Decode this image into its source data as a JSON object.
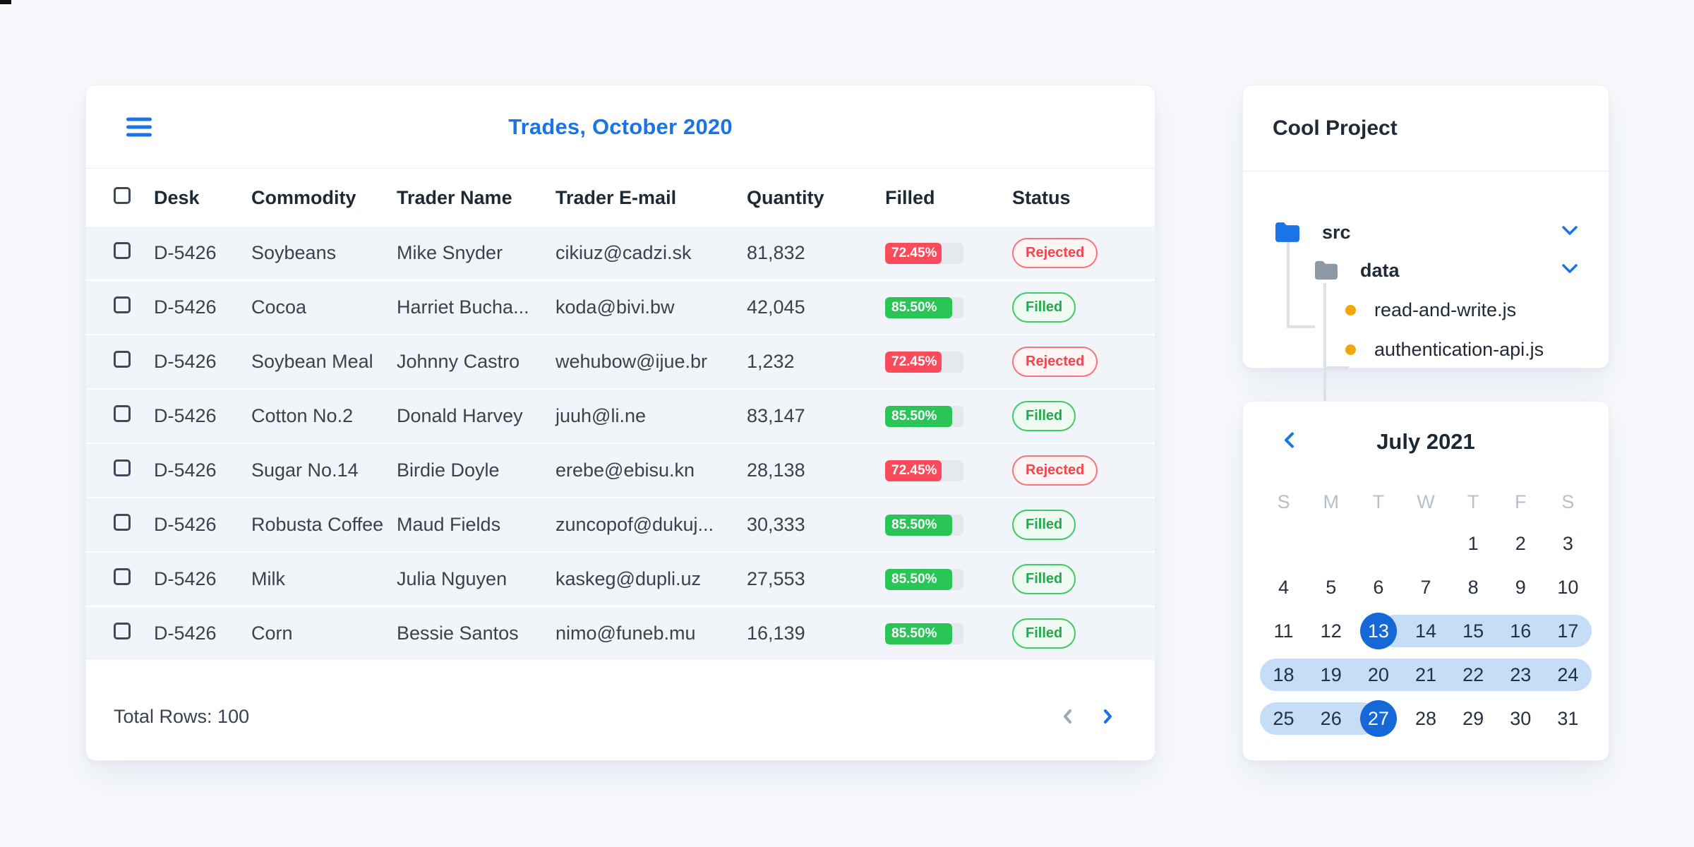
{
  "accent_color": "#1a73e8",
  "table_card": {
    "title": "Trades, October 2020",
    "columns": [
      "Desk",
      "Commodity",
      "Trader Name",
      "Trader E-mail",
      "Quantity",
      "Filled",
      "Status"
    ],
    "rows": [
      {
        "desk": "D-5426",
        "commodity": "Soybeans",
        "trader": "Mike Snyder",
        "email": "cikiuz@cadzi.sk",
        "quantity": "81,832",
        "filled": "72.45%",
        "status": "Rejected"
      },
      {
        "desk": "D-5426",
        "commodity": "Cocoa",
        "trader": "Harriet Bucha...",
        "email": "koda@bivi.bw",
        "quantity": "42,045",
        "filled": "85.50%",
        "status": "Filled"
      },
      {
        "desk": "D-5426",
        "commodity": "Soybean Meal",
        "trader": "Johnny Castro",
        "email": "wehubow@ijue.br",
        "quantity": "1,232",
        "filled": "72.45%",
        "status": "Rejected"
      },
      {
        "desk": "D-5426",
        "commodity": "Cotton No.2",
        "trader": "Donald Harvey",
        "email": "juuh@li.ne",
        "quantity": "83,147",
        "filled": "85.50%",
        "status": "Filled"
      },
      {
        "desk": "D-5426",
        "commodity": "Sugar No.14",
        "trader": "Birdie Doyle",
        "email": "erebe@ebisu.kn",
        "quantity": "28,138",
        "filled": "72.45%",
        "status": "Rejected"
      },
      {
        "desk": "D-5426",
        "commodity": "Robusta Coffee",
        "trader": "Maud Fields",
        "email": "zuncopof@dukuj...",
        "quantity": "30,333",
        "filled": "85.50%",
        "status": "Filled"
      },
      {
        "desk": "D-5426",
        "commodity": "Milk",
        "trader": "Julia Nguyen",
        "email": "kaskeg@dupli.uz",
        "quantity": "27,553",
        "filled": "85.50%",
        "status": "Filled"
      },
      {
        "desk": "D-5426",
        "commodity": "Corn",
        "trader": "Bessie Santos",
        "email": "nimo@funeb.mu",
        "quantity": "16,139",
        "filled": "85.50%",
        "status": "Filled"
      }
    ],
    "status_colors": {
      "filled_green": "#2bc457",
      "rejected_red": "#fb4b5b"
    },
    "footer": {
      "total_label": "Total Rows: 100"
    }
  },
  "project_card": {
    "title": "Cool Project",
    "tree": {
      "src_label": "src",
      "data_label": "data",
      "files": [
        "read-and-write.js",
        "authentication-api.js"
      ]
    }
  },
  "calendar_card": {
    "title": "July 2021",
    "day_headers": [
      "S",
      "M",
      "T",
      "W",
      "T",
      "F",
      "S"
    ],
    "selected_range": {
      "start": "13",
      "end": "27"
    },
    "weeks": [
      [
        {
          "d": ""
        },
        {
          "d": ""
        },
        {
          "d": ""
        },
        {
          "d": ""
        },
        {
          "d": "1"
        },
        {
          "d": "2"
        },
        {
          "d": "3"
        }
      ],
      [
        {
          "d": "4"
        },
        {
          "d": "5"
        },
        {
          "d": "6"
        },
        {
          "d": "7"
        },
        {
          "d": "8"
        },
        {
          "d": "9"
        },
        {
          "d": "10"
        }
      ],
      [
        {
          "d": "11"
        },
        {
          "d": "12"
        },
        {
          "d": "13",
          "state": "sel"
        },
        {
          "d": "14",
          "state": "band"
        },
        {
          "d": "15",
          "state": "band"
        },
        {
          "d": "16",
          "state": "band"
        },
        {
          "d": "17",
          "state": "band"
        }
      ],
      [
        {
          "d": "18",
          "state": "band"
        },
        {
          "d": "19",
          "state": "band"
        },
        {
          "d": "20",
          "state": "band"
        },
        {
          "d": "21",
          "state": "band"
        },
        {
          "d": "22",
          "state": "band"
        },
        {
          "d": "23",
          "state": "band"
        },
        {
          "d": "24",
          "state": "band"
        }
      ],
      [
        {
          "d": "25",
          "state": "band"
        },
        {
          "d": "26",
          "state": "band"
        },
        {
          "d": "27",
          "state": "sel"
        },
        {
          "d": "28"
        },
        {
          "d": "29"
        },
        {
          "d": "30"
        },
        {
          "d": "31"
        }
      ]
    ]
  }
}
